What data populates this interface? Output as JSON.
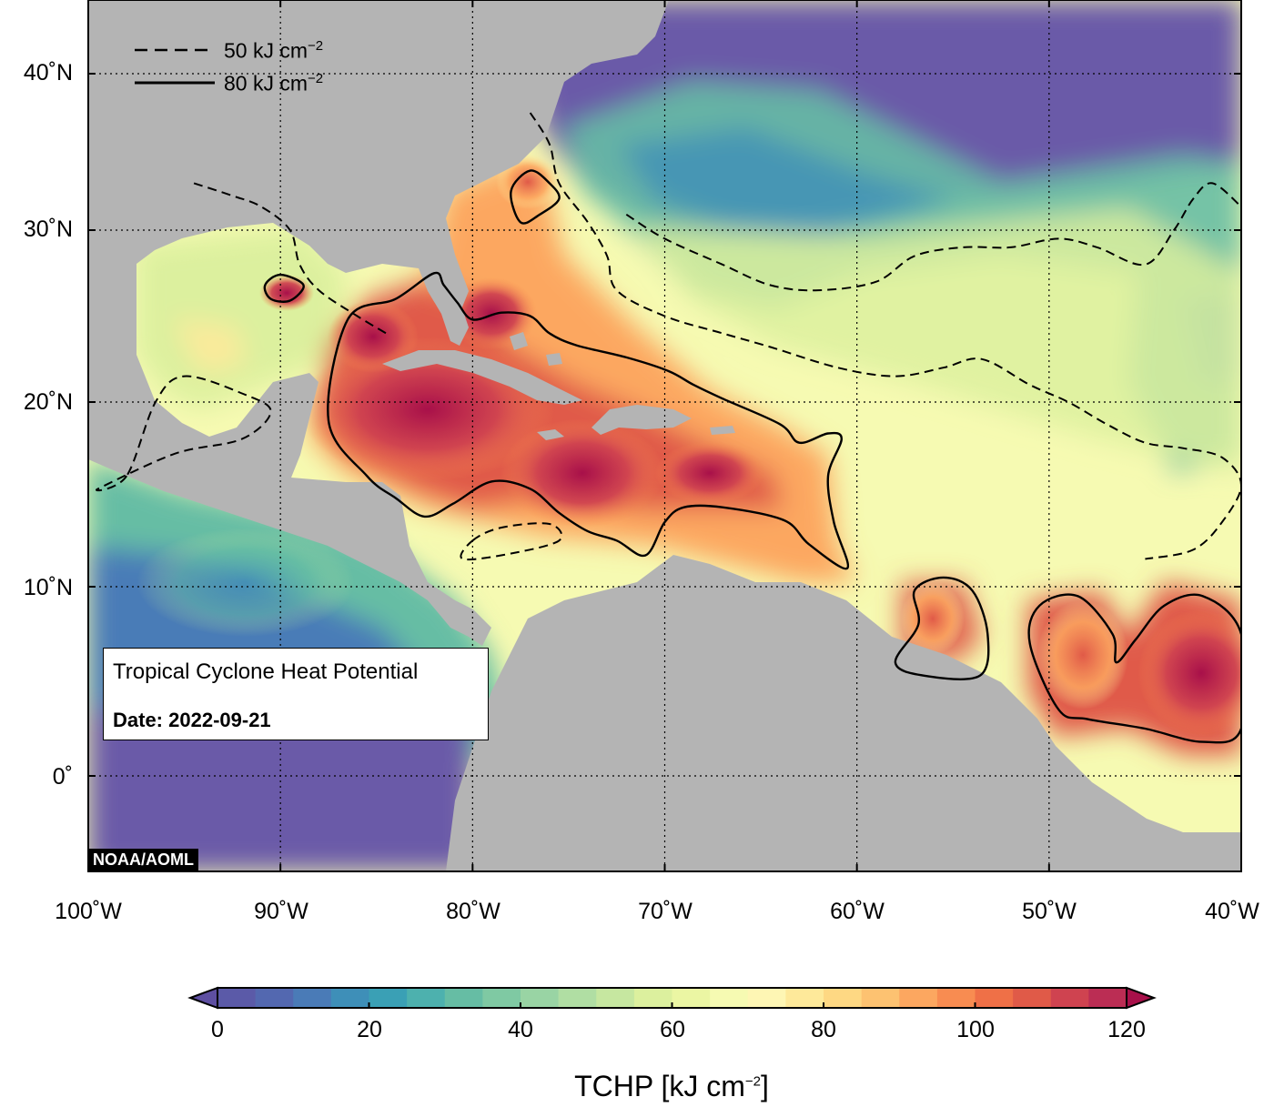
{
  "map": {
    "title": "Tropical Cyclone Heat Potential",
    "date_label": "Date: 2022-09-21",
    "credit": "NOAA/AOML",
    "region": {
      "lon_range": [
        -100,
        -40
      ],
      "lat_range": [
        -5,
        44
      ]
    },
    "colors": {
      "land": "#b4b4b4",
      "low_ocean": "#6a5aa8",
      "high_ocean": "#a8104a"
    }
  },
  "axes": {
    "y_ticks": [
      "40˚N",
      "30˚N",
      "20˚N",
      "10˚N",
      "0˚"
    ],
    "y_values": [
      40,
      30,
      20,
      10,
      0
    ],
    "x_ticks": [
      "100˚W",
      "90˚W",
      "80˚W",
      "70˚W",
      "60˚W",
      "50˚W",
      "40˚W"
    ],
    "x_values": [
      -100,
      -90,
      -80,
      -70,
      -60,
      -50,
      -40
    ]
  },
  "legend": {
    "dashed": {
      "value": "50 kJ cm",
      "exp": "−2"
    },
    "solid": {
      "value": "80 kJ cm",
      "exp": "−2"
    }
  },
  "colorbar": {
    "label": "TCHP [kJ cm",
    "label_exp": "−2",
    "label_close": "]",
    "range": [
      0,
      120
    ],
    "ticks": [
      "0",
      "20",
      "40",
      "60",
      "80",
      "100",
      "120"
    ],
    "tick_values": [
      0,
      20,
      40,
      60,
      80,
      100,
      120
    ],
    "colors": [
      "#5e4fa2",
      "#5b5aa8",
      "#5368b0",
      "#4a7bb7",
      "#3e8fb8",
      "#3aa0b5",
      "#4db1ae",
      "#66bda4",
      "#7fc9a3",
      "#99d4a4",
      "#b0dea3",
      "#c6e7a0",
      "#dcf09e",
      "#ebf6a3",
      "#f6fab2",
      "#fef6b4",
      "#fee99a",
      "#fed883",
      "#fdc271",
      "#fca760",
      "#f88c51",
      "#ef7047",
      "#e05a48",
      "#cf4350",
      "#bb2d54",
      "#a8104a"
    ]
  },
  "contours": {
    "tchp80": [
      [
        [
          -87.5,
          19.0
        ],
        [
          -86.5,
          24.8
        ],
        [
          -84.0,
          26.0
        ],
        [
          -82.0,
          27.5
        ],
        [
          -81.5,
          26.8
        ],
        [
          -80.8,
          25.8
        ],
        [
          -80.0,
          24.8
        ],
        [
          -78.5,
          25.2
        ],
        [
          -77.0,
          25.0
        ],
        [
          -76.0,
          24.0
        ],
        [
          -74.6,
          23.3
        ],
        [
          -72.0,
          22.6
        ],
        [
          -69.8,
          21.8
        ],
        [
          -68.5,
          21.0
        ],
        [
          -67.0,
          20.2
        ],
        [
          -64.0,
          18.8
        ],
        [
          -63.0,
          17.8
        ],
        [
          -61.5,
          18.3
        ],
        [
          -60.8,
          18.0
        ],
        [
          -61.5,
          16.0
        ],
        [
          -61.2,
          13.5
        ],
        [
          -60.5,
          11.0
        ],
        [
          -62.5,
          12.3
        ],
        [
          -63.8,
          13.6
        ],
        [
          -67.0,
          14.3
        ],
        [
          -69.0,
          14.3
        ],
        [
          -70.0,
          13.5
        ],
        [
          -71.0,
          11.7
        ],
        [
          -72.5,
          12.5
        ],
        [
          -74.0,
          13.0
        ],
        [
          -75.5,
          14.0
        ],
        [
          -77.0,
          15.3
        ],
        [
          -79.0,
          15.7
        ],
        [
          -81.0,
          14.5
        ],
        [
          -82.5,
          13.8
        ],
        [
          -84.0,
          14.8
        ],
        [
          -85.5,
          16.0
        ]
      ],
      [
        [
          -90.8,
          26.8
        ],
        [
          -90.0,
          27.4
        ],
        [
          -88.8,
          26.8
        ],
        [
          -89.5,
          25.9
        ],
        [
          -90.5,
          26.0
        ]
      ],
      [
        [
          -56.8,
          8.0
        ],
        [
          -57.0,
          9.8
        ],
        [
          -55.5,
          10.5
        ],
        [
          -54.0,
          9.8
        ],
        [
          -53.2,
          7.5
        ],
        [
          -53.6,
          5.3
        ],
        [
          -56.5,
          5.3
        ],
        [
          -58.0,
          6.0
        ]
      ],
      [
        [
          -48.5,
          9.5
        ],
        [
          -50.5,
          9.0
        ],
        [
          -51.0,
          7.0
        ],
        [
          -49.5,
          3.5
        ],
        [
          -48.0,
          3.0
        ],
        [
          -45.0,
          2.5
        ],
        [
          -42.0,
          1.8
        ],
        [
          -40.0,
          2.5
        ],
        [
          -40.0,
          7.5
        ],
        [
          -42.0,
          9.5
        ],
        [
          -44.0,
          9.0
        ],
        [
          -45.5,
          7.2
        ],
        [
          -46.5,
          6.0
        ],
        [
          -46.7,
          7.5
        ]
      ],
      [
        [
          -77.5,
          30.5
        ],
        [
          -78.0,
          32.5
        ],
        [
          -77.0,
          33.8
        ],
        [
          -76.0,
          33.0
        ],
        [
          -75.5,
          32.0
        ],
        [
          -76.5,
          31.0
        ]
      ]
    ],
    "tchp50": [
      [
        [
          -94.5,
          33.0
        ],
        [
          -92.5,
          32.2
        ],
        [
          -91.0,
          31.5
        ],
        [
          -89.5,
          30.0
        ],
        [
          -89.0,
          28.0
        ],
        [
          -88.0,
          26.5
        ],
        [
          -86.0,
          25.0
        ],
        [
          -84.5,
          24.0
        ]
      ],
      [
        [
          -98.0,
          16.0
        ],
        [
          -99.5,
          15.3
        ],
        [
          -95.5,
          17.2
        ],
        [
          -92.0,
          18.0
        ],
        [
          -90.5,
          19.5
        ],
        [
          -92.0,
          20.5
        ],
        [
          -95.0,
          21.5
        ],
        [
          -96.5,
          20.0
        ]
      ],
      [
        [
          -77.0,
          37.5
        ],
        [
          -76.0,
          35.5
        ],
        [
          -75.5,
          33.0
        ],
        [
          -74.0,
          30.5
        ],
        [
          -73.0,
          28.5
        ],
        [
          -72.5,
          26.5
        ],
        [
          -70.0,
          25.0
        ],
        [
          -67.0,
          24.0
        ],
        [
          -64.5,
          23.2
        ],
        [
          -61.0,
          22.0
        ],
        [
          -58.0,
          21.5
        ],
        [
          -55.5,
          22.0
        ],
        [
          -53.5,
          22.5
        ],
        [
          -51.0,
          21.0
        ],
        [
          -49.0,
          20.0
        ],
        [
          -47.0,
          18.8
        ],
        [
          -45.0,
          17.8
        ],
        [
          -43.0,
          17.5
        ],
        [
          -41.0,
          17.0
        ],
        [
          -40.0,
          15.5
        ],
        [
          -41.0,
          13.5
        ],
        [
          -42.5,
          12.0
        ],
        [
          -45.0,
          11.5
        ]
      ],
      [
        [
          -72.0,
          31.0
        ],
        [
          -70.0,
          29.5
        ],
        [
          -67.0,
          28.0
        ],
        [
          -64.5,
          26.8
        ],
        [
          -62.0,
          26.5
        ],
        [
          -59.0,
          27.0
        ],
        [
          -57.0,
          28.5
        ],
        [
          -54.5,
          29.0
        ],
        [
          -52.0,
          29.0
        ],
        [
          -49.5,
          29.5
        ],
        [
          -47.5,
          29.0
        ],
        [
          -45.0,
          28.0
        ],
        [
          -43.5,
          30.0
        ],
        [
          -42.5,
          32.0
        ],
        [
          -41.5,
          33.0
        ],
        [
          -40.0,
          31.5
        ]
      ],
      [
        [
          -80.0,
          12.5
        ],
        [
          -78.5,
          13.2
        ],
        [
          -76.0,
          13.4
        ],
        [
          -75.5,
          12.5
        ],
        [
          -78.0,
          11.8
        ],
        [
          -80.5,
          11.5
        ]
      ]
    ]
  }
}
